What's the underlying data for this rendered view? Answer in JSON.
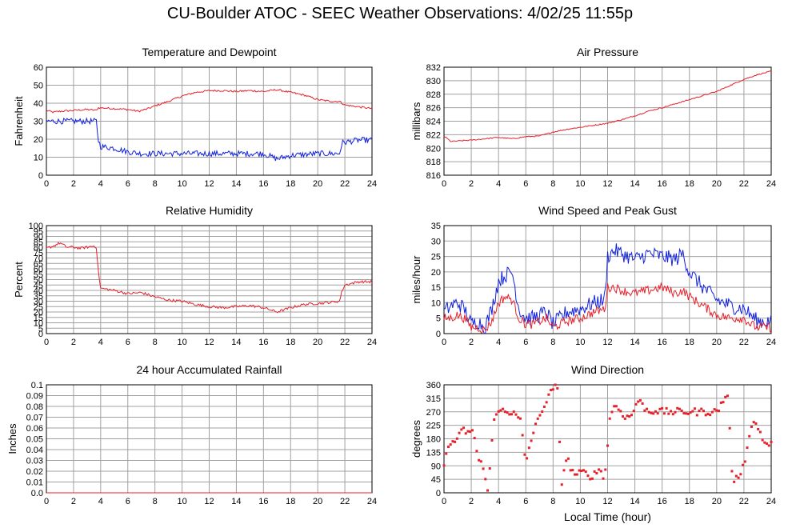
{
  "page_title": "CU-Boulder ATOC - SEEC Weather Observations: 4/02/25 11:55p",
  "x_axis_label": "Local Time (hour)",
  "colors": {
    "red": "#e8202a",
    "blue": "#1020e0",
    "grid": "#a0a0a0"
  },
  "chart_data": [
    {
      "type": "line",
      "title": "Temperature and Dewpoint",
      "ylabel": "Fahrenheit",
      "xlim": [
        0,
        24
      ],
      "ylim": [
        0,
        60
      ],
      "xticks": [
        0,
        2,
        4,
        6,
        8,
        10,
        12,
        14,
        16,
        18,
        20,
        22,
        24
      ],
      "yticks": [
        0,
        10,
        20,
        30,
        40,
        50,
        60
      ],
      "grid": true,
      "series": [
        {
          "color": "#e8202a",
          "noise": 0.5,
          "x": [
            0,
            0.5,
            1,
            2,
            3,
            3.7,
            3.8,
            5,
            6,
            6.8,
            7.5,
            8,
            9,
            10,
            11,
            12,
            13,
            14,
            15,
            16,
            17,
            18,
            19,
            20,
            21,
            21.6,
            22,
            23,
            24
          ],
          "y": [
            36,
            35,
            35.5,
            36,
            36.5,
            36,
            37.5,
            37,
            36.5,
            35.5,
            37,
            38.5,
            41,
            44,
            46,
            47,
            47,
            46.5,
            47,
            46.5,
            47.5,
            46,
            44.5,
            42,
            41,
            41,
            39,
            38,
            37
          ]
        },
        {
          "color": "#1020e0",
          "noise": 1.6,
          "x": [
            0,
            1,
            2,
            3,
            3.7,
            3.8,
            4,
            5,
            6,
            7,
            8,
            10,
            12,
            13,
            14,
            16,
            17,
            18,
            20,
            21,
            21.6,
            21.8,
            23,
            24
          ],
          "y": [
            30,
            30,
            30,
            30,
            30,
            20,
            16,
            15,
            13,
            12,
            12,
            12,
            12,
            12,
            12,
            12,
            9,
            11,
            12,
            12,
            12,
            18,
            19.5,
            19.5
          ]
        }
      ]
    },
    {
      "type": "line",
      "title": "Air Pressure",
      "ylabel": "millibars",
      "xlim": [
        0,
        24
      ],
      "ylim": [
        816,
        832
      ],
      "xticks": [
        0,
        2,
        4,
        6,
        8,
        10,
        12,
        14,
        16,
        18,
        20,
        22,
        24
      ],
      "yticks": [
        816,
        818,
        820,
        822,
        824,
        826,
        828,
        830,
        832
      ],
      "grid": true,
      "series": [
        {
          "color": "#e8202a",
          "noise": 0.08,
          "x": [
            0,
            0.5,
            2,
            4,
            5,
            6,
            7,
            8,
            9,
            10,
            11,
            12,
            13,
            14,
            15,
            16,
            17,
            18,
            19,
            20,
            21,
            22,
            23,
            24
          ],
          "y": [
            821.8,
            821,
            821.2,
            821.6,
            821.4,
            821.7,
            821.8,
            822.4,
            822.8,
            823.1,
            823.4,
            823.7,
            824.2,
            824.8,
            825.5,
            826,
            826.6,
            827.2,
            827.8,
            828.4,
            829.3,
            830.2,
            830.9,
            831.4
          ]
        }
      ]
    },
    {
      "type": "line",
      "title": "Relative Humidity",
      "ylabel": "Percent",
      "xlim": [
        0,
        24
      ],
      "ylim": [
        0,
        100
      ],
      "xticks": [
        0,
        2,
        4,
        6,
        8,
        10,
        12,
        14,
        16,
        18,
        20,
        22,
        24
      ],
      "yticks": [
        0,
        5,
        10,
        15,
        20,
        25,
        30,
        35,
        40,
        45,
        50,
        55,
        60,
        65,
        70,
        75,
        80,
        85,
        90,
        95,
        100
      ],
      "grid": true,
      "series": [
        {
          "color": "#e8202a",
          "noise": 1.2,
          "x": [
            0,
            0.5,
            1,
            1.5,
            2,
            2.5,
            3,
            3.5,
            3.7,
            3.8,
            4,
            5,
            6,
            7,
            8,
            9,
            10,
            11,
            12,
            13,
            14,
            15,
            16,
            17,
            18,
            19,
            20,
            21,
            21.6,
            21.8,
            22,
            23,
            24
          ],
          "y": [
            79,
            81,
            84,
            80,
            80,
            79,
            80,
            81,
            80,
            60,
            42,
            40,
            37,
            38,
            34,
            31,
            30,
            27,
            25,
            24,
            25,
            26,
            24,
            20,
            24,
            27,
            28,
            29,
            30,
            40,
            45,
            48,
            48
          ]
        }
      ]
    },
    {
      "type": "line",
      "title": "Wind Speed and Peak Gust",
      "ylabel": "miles/hour",
      "xlim": [
        0,
        24
      ],
      "ylim": [
        0,
        35
      ],
      "xticks": [
        0,
        2,
        4,
        6,
        8,
        10,
        12,
        14,
        16,
        18,
        20,
        22,
        24
      ],
      "yticks": [
        0,
        5,
        10,
        15,
        20,
        25,
        30,
        35
      ],
      "grid": true,
      "series": [
        {
          "color": "#1020e0",
          "noise": 2.5,
          "x": [
            0,
            0.5,
            1,
            1.5,
            2,
            2.5,
            3,
            3.5,
            4,
            4.5,
            5,
            5.5,
            6,
            6.5,
            7,
            7.5,
            8,
            9,
            10,
            11,
            11.8,
            12,
            12.5,
            13,
            14,
            15,
            16,
            17,
            17.5,
            18,
            19,
            20,
            21,
            22,
            22.5,
            23,
            24
          ],
          "y": [
            7,
            9,
            10,
            8,
            3,
            4,
            2,
            8,
            17,
            19,
            20,
            8,
            5,
            5,
            6,
            7,
            3,
            7,
            8,
            10,
            11,
            25,
            27,
            26,
            24,
            26,
            25,
            24,
            26,
            20,
            15,
            11,
            9,
            8,
            6,
            4,
            4
          ]
        },
        {
          "color": "#e8202a",
          "noise": 1.5,
          "x": [
            0,
            0.5,
            1,
            1.5,
            2,
            2.5,
            3,
            3.5,
            4,
            4.5,
            5,
            5.5,
            6,
            6.5,
            7,
            7.5,
            8,
            9,
            10,
            11,
            11.8,
            12,
            12.5,
            13,
            14,
            15,
            16,
            17,
            17.5,
            18,
            19,
            20,
            21,
            22,
            22.5,
            23,
            24
          ],
          "y": [
            5,
            5,
            6,
            5,
            2,
            2,
            1,
            4,
            10,
            12,
            11,
            5,
            3,
            3,
            4,
            5,
            2,
            4,
            5,
            7,
            8,
            15,
            15,
            14,
            13,
            14,
            15,
            13,
            14,
            12,
            9,
            6,
            5,
            5,
            3,
            2,
            2
          ]
        }
      ]
    },
    {
      "type": "line",
      "title": "24 hour Accumulated Rainfall",
      "ylabel": "Inches",
      "xlim": [
        0,
        24
      ],
      "ylim": [
        0,
        0.1
      ],
      "xticks": [
        0,
        2,
        4,
        6,
        8,
        10,
        12,
        14,
        16,
        18,
        20,
        22,
        24
      ],
      "yticks": [
        0.0,
        0.01,
        0.02,
        0.03,
        0.04,
        0.05,
        0.06,
        0.07,
        0.08,
        0.09,
        0.1
      ],
      "ytick_labels": [
        "0.0",
        "0.01",
        "0.02",
        "0.03",
        "0.04",
        "0.05",
        "0.06",
        "0.07",
        "0.08",
        "0.09",
        "0.1"
      ],
      "grid": true,
      "series": [
        {
          "color": "#e8202a",
          "noise": 0,
          "x": [
            0,
            24
          ],
          "y": [
            0,
            0
          ]
        }
      ]
    },
    {
      "type": "scatter",
      "title": "Wind Direction",
      "ylabel": "degrees",
      "xlim": [
        0,
        24
      ],
      "ylim": [
        0,
        360
      ],
      "xticks": [
        0,
        2,
        4,
        6,
        8,
        10,
        12,
        14,
        16,
        18,
        20,
        22,
        24
      ],
      "yticks": [
        0,
        45,
        90,
        135,
        180,
        225,
        270,
        315,
        360
      ],
      "grid": true,
      "series": [
        {
          "color": "#e8202a",
          "noise": 12,
          "x": [
            0,
            0.3,
            0.6,
            1,
            1.4,
            1.8,
            2.2,
            2.5,
            2.8,
            3.2,
            3.6,
            4,
            4.4,
            4.8,
            5.2,
            5.6,
            6,
            6.4,
            6.8,
            7.2,
            7.6,
            8,
            8.3,
            8.6,
            9,
            9.4,
            9.8,
            10.2,
            10.6,
            11,
            11.4,
            11.8,
            12.2,
            12.6,
            13,
            13.4,
            13.8,
            14.2,
            14.6,
            15,
            15.5,
            16,
            16.5,
            17,
            17.5,
            18,
            18.5,
            19,
            19.5,
            20,
            20.4,
            20.8,
            21.2,
            21.6,
            22,
            22.4,
            22.8,
            23.2,
            23.6,
            24
          ],
          "y": [
            90,
            150,
            170,
            180,
            210,
            200,
            200,
            110,
            100,
            0,
            230,
            270,
            280,
            270,
            260,
            240,
            100,
            180,
            230,
            280,
            310,
            350,
            360,
            30,
            120,
            70,
            60,
            70,
            55,
            60,
            80,
            50,
            270,
            290,
            270,
            250,
            260,
            310,
            290,
            270,
            275,
            270,
            270,
            270,
            270,
            270,
            270,
            270,
            270,
            270,
            300,
            330,
            20,
            60,
            90,
            200,
            240,
            200,
            160,
            160
          ]
        }
      ]
    }
  ]
}
